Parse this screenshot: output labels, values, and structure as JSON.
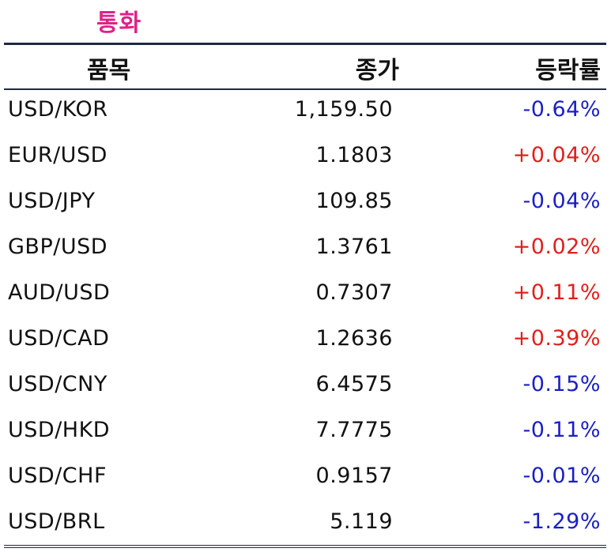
{
  "section_title": "통화",
  "columns": {
    "item": "품목",
    "close": "종가",
    "change": "등락률"
  },
  "colors": {
    "title": "#e0218a",
    "positive": "#e0201c",
    "negative": "#1a1fc4",
    "rule": "#1f2a44"
  },
  "rows": [
    {
      "item": "USD/KOR",
      "close": "1,159.50",
      "change": "-0.64%",
      "direction": "down"
    },
    {
      "item": "EUR/USD",
      "close": "1.1803",
      "change": "+0.04%",
      "direction": "up"
    },
    {
      "item": "USD/JPY",
      "close": "109.85",
      "change": "-0.04%",
      "direction": "down"
    },
    {
      "item": "GBP/USD",
      "close": "1.3761",
      "change": "+0.02%",
      "direction": "up"
    },
    {
      "item": "AUD/USD",
      "close": "0.7307",
      "change": "+0.11%",
      "direction": "up"
    },
    {
      "item": "USD/CAD",
      "close": "1.2636",
      "change": "+0.39%",
      "direction": "up"
    },
    {
      "item": "USD/CNY",
      "close": "6.4575",
      "change": "-0.15%",
      "direction": "down"
    },
    {
      "item": "USD/HKD",
      "close": "7.7775",
      "change": "-0.11%",
      "direction": "down"
    },
    {
      "item": "USD/CHF",
      "close": "0.9157",
      "change": "-0.01%",
      "direction": "down"
    },
    {
      "item": "USD/BRL",
      "close": "5.119",
      "change": "-1.29%",
      "direction": "down"
    }
  ]
}
